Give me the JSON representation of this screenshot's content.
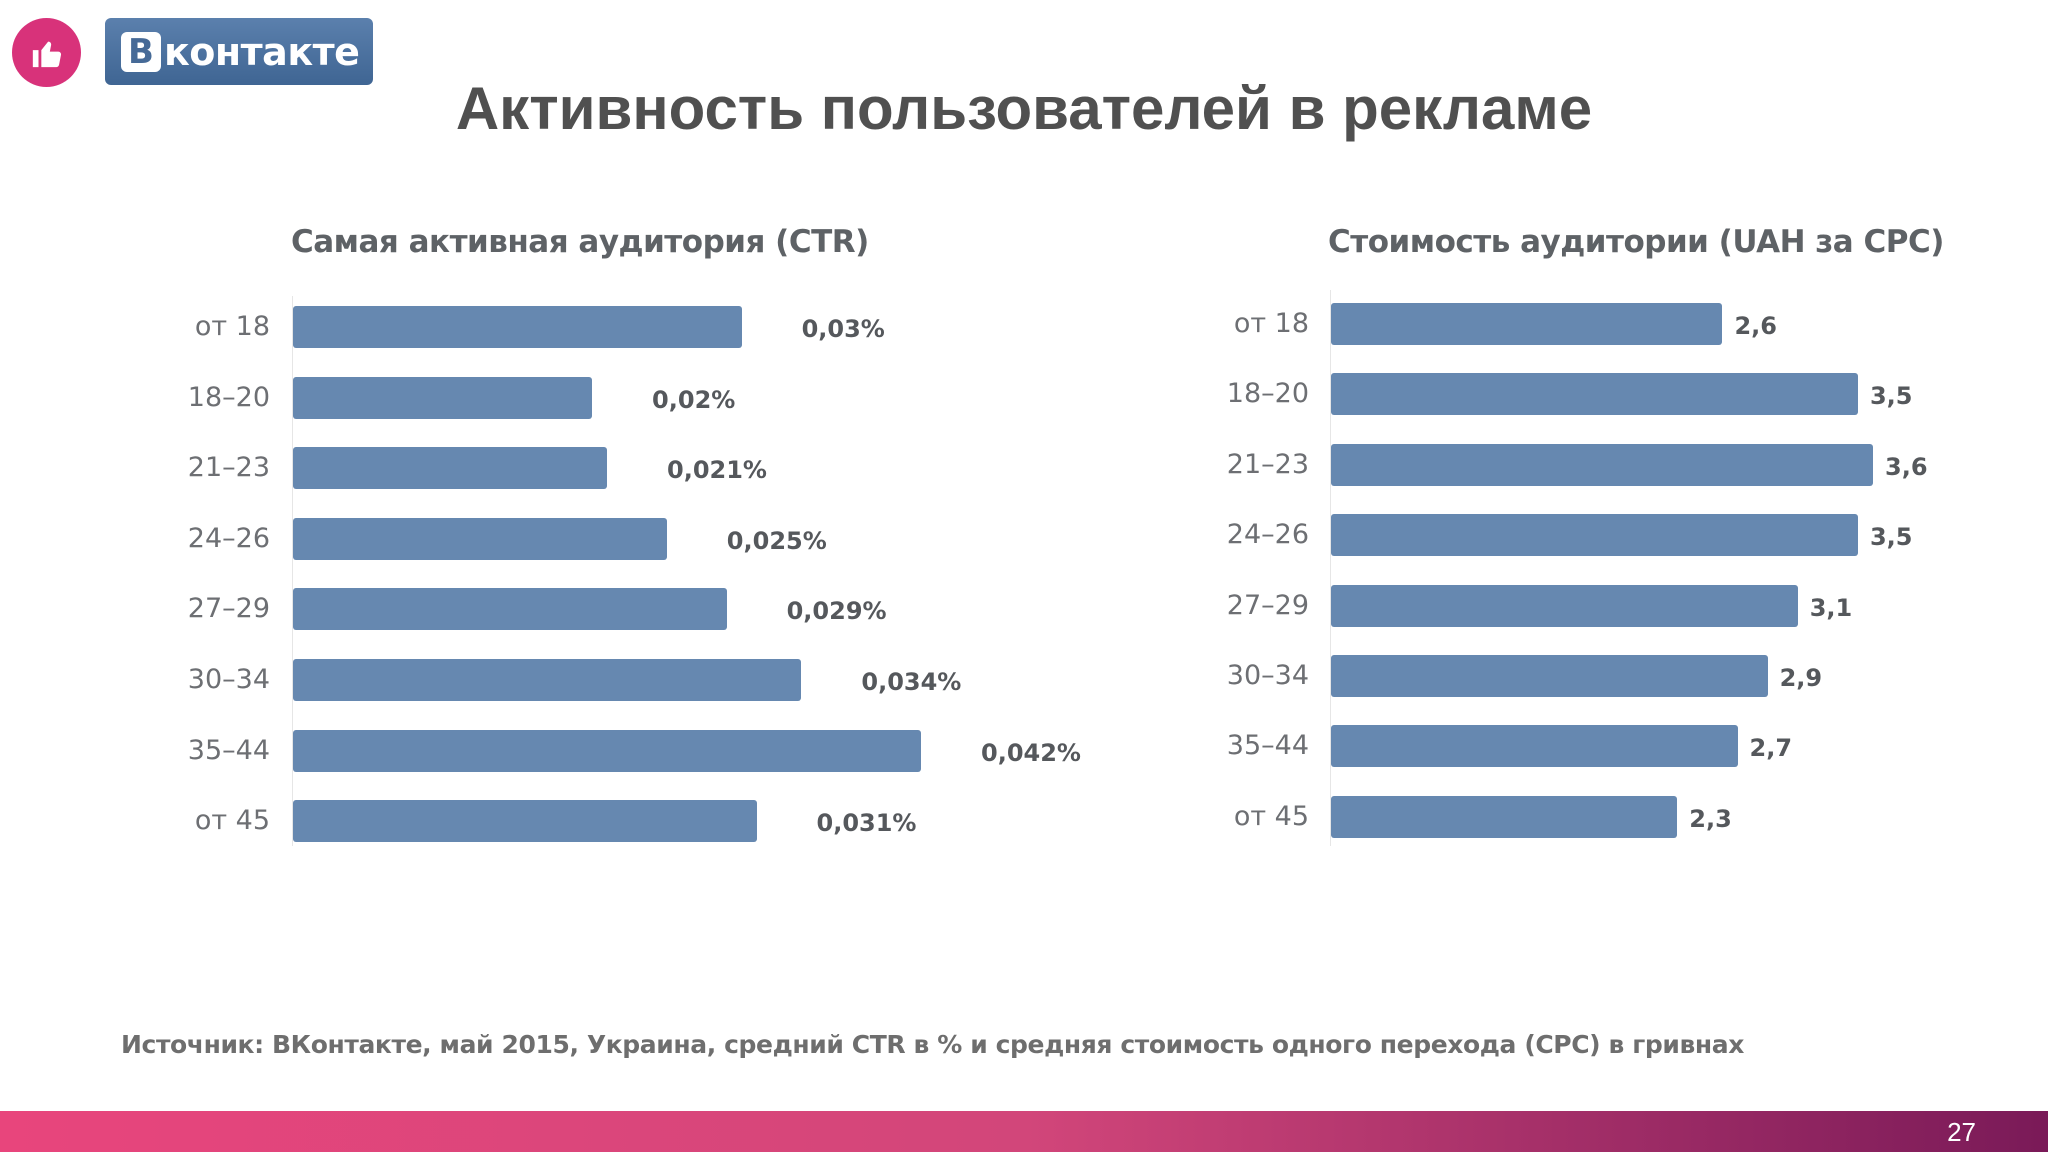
{
  "slide": {
    "title": "Активность пользователей в рекламе",
    "source": "Источник: ВКонтакте, май 2015, Украина, средний CTR в % и средняя стоимость одного перехода (CPC) в гривнах",
    "page_number": "27"
  },
  "logo": {
    "badge_icon": "thumbs-up-icon",
    "letter": "В",
    "text": "контакте",
    "brand_color": "#466a97",
    "badge_color": "#d8327a"
  },
  "chart_data": [
    {
      "type": "bar",
      "orientation": "horizontal",
      "title": "Самая активная аудитория (CTR)",
      "categories": [
        "от 18",
        "18–20",
        "21–23",
        "24–26",
        "27–29",
        "30–34",
        "35–44",
        "от 45"
      ],
      "values": [
        0.03,
        0.02,
        0.021,
        0.025,
        0.029,
        0.034,
        0.042,
        0.031
      ],
      "value_labels": [
        "0,03%",
        "0,02%",
        "0,021%",
        "0,025%",
        "0,029%",
        "0,034%",
        "0,042%",
        "0,031%"
      ],
      "unit": "%",
      "xlim": [
        0,
        0.042
      ],
      "bar_color": "#6688b0",
      "grid": false
    },
    {
      "type": "bar",
      "orientation": "horizontal",
      "title": "Стоимость аудитории (UAH за CPC)",
      "categories": [
        "от 18",
        "18–20",
        "21–23",
        "24–26",
        "27–29",
        "30–34",
        "35–44",
        "от 45"
      ],
      "values": [
        2.6,
        3.5,
        3.6,
        3.5,
        3.1,
        2.9,
        2.7,
        2.3
      ],
      "value_labels": [
        "2,6",
        "3,5",
        "3,6",
        "3,5",
        "3,1",
        "2,9",
        "2,7",
        "2,3"
      ],
      "unit": "UAH",
      "xlim": [
        0,
        3.6
      ],
      "bar_color": "#6688b0",
      "grid": false
    }
  ]
}
